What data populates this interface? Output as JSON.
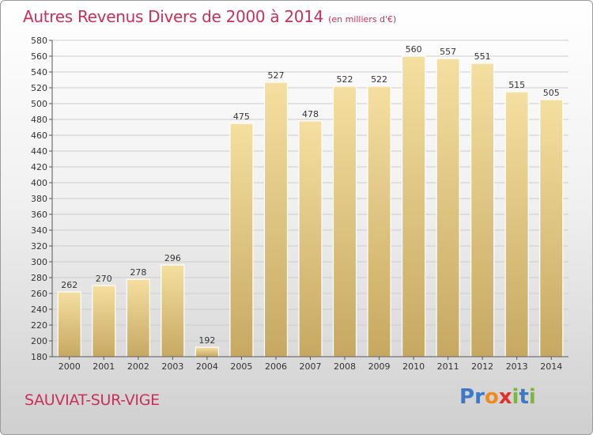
{
  "title": "Autres Revenus Divers de 2000 à 2014",
  "subtitle": "(en milliers d'€)",
  "place": "SAUVIAT-SUR-VIGE",
  "logo": {
    "letters": [
      "P",
      "r",
      "o",
      "x",
      "i",
      "t",
      "i"
    ],
    "colors": [
      "#3a78c8",
      "#3a78c8",
      "#f08a1c",
      "#e0302a",
      "#7ab83a",
      "#3a78c8",
      "#7ab83a"
    ]
  },
  "colors": {
    "title": "#c8305a",
    "bar_top": "#f5dfa0",
    "bar_bottom": "#c6a862",
    "grid": "#cccccc",
    "axis": "#555555"
  },
  "chart_data": {
    "type": "bar",
    "categories": [
      "2000",
      "2001",
      "2002",
      "2003",
      "2004",
      "2005",
      "2006",
      "2007",
      "2008",
      "2009",
      "2010",
      "2011",
      "2012",
      "2013",
      "2014"
    ],
    "values": [
      262,
      270,
      278,
      296,
      192,
      475,
      527,
      478,
      522,
      522,
      560,
      557,
      551,
      515,
      505
    ],
    "value_labels": [
      "262",
      "270",
      "278",
      "296",
      "192",
      "475",
      "527",
      "478",
      "522",
      "522",
      "560",
      "557",
      "551",
      "515",
      "505"
    ],
    "title": "Autres Revenus Divers de 2000 à 2014",
    "xlabel": "",
    "ylabel": "",
    "ylim": [
      180,
      580
    ],
    "yticks": [
      "180",
      "200",
      "220",
      "240",
      "260",
      "280",
      "300",
      "320",
      "340",
      "360",
      "380",
      "400",
      "420",
      "440",
      "460",
      "480",
      "500",
      "520",
      "540",
      "560",
      "580"
    ],
    "grid": true,
    "legend": "none"
  }
}
